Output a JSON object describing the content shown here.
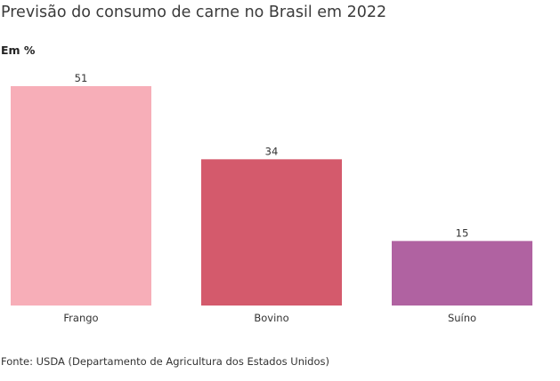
{
  "chart_data": {
    "type": "bar",
    "title": "Previsão do consumo de carne no Brasil em 2022",
    "subtitle": "Em %",
    "categories": [
      "Frango",
      "Bovino",
      "Suíno"
    ],
    "values": [
      51,
      34,
      15
    ],
    "colors": [
      "#f7aeb8",
      "#d45a6c",
      "#b062a1"
    ],
    "ylim": [
      0,
      51
    ],
    "data_labels": true,
    "grid": false,
    "legend": "none"
  },
  "source": "Fonte: USDA (Departamento de Agricultura dos Estados Unidos)"
}
